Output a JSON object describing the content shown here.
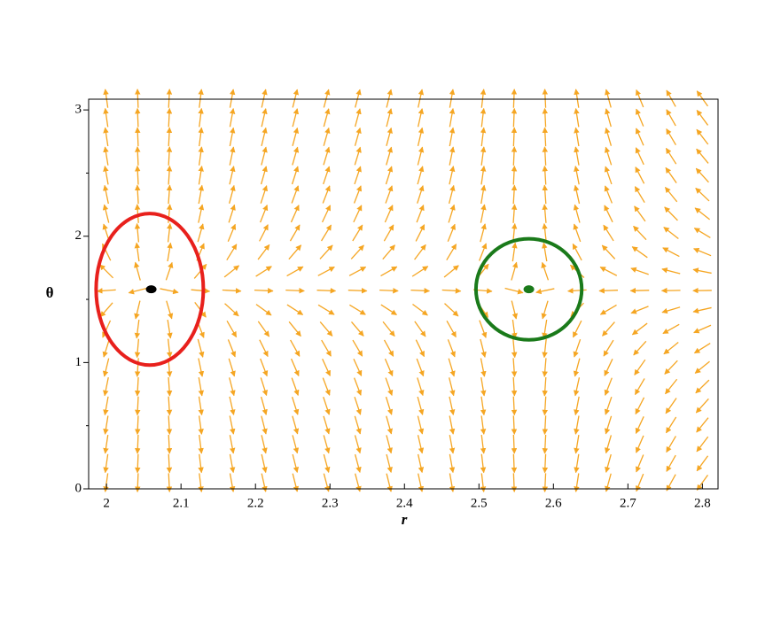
{
  "chart_data": {
    "type": "vector_field",
    "xlabel": "r",
    "ylabel": "θ",
    "xlim": [
      1.976,
      2.821
    ],
    "ylim": [
      0,
      3.085
    ],
    "xticks": [
      2,
      2.1,
      2.2,
      2.3,
      2.4,
      2.5,
      2.6,
      2.7,
      2.8
    ],
    "yticks": [
      0,
      1,
      2,
      3
    ],
    "yminor_ticks": [
      0.5,
      1.5,
      2.5
    ],
    "arrow_color": "#f5a623",
    "arrow_grid": {
      "r": [
        2.0,
        2.042,
        2.084,
        2.126,
        2.168,
        2.211,
        2.253,
        2.295,
        2.337,
        2.379,
        2.421,
        2.463,
        2.505,
        2.547,
        2.589,
        2.632,
        2.674,
        2.716,
        2.758,
        2.8
      ],
      "theta": [
        0.05,
        0.202,
        0.354,
        0.506,
        0.658,
        0.81,
        0.962,
        1.114,
        1.266,
        1.418,
        1.57,
        1.722,
        1.874,
        2.026,
        2.178,
        2.33,
        2.482,
        2.634,
        2.786,
        2.938,
        3.09
      ]
    },
    "critical_points": [
      {
        "r": 2.06,
        "theta": 1.58,
        "color": "#000000"
      },
      {
        "r": 2.567,
        "theta": 1.58,
        "color": "#1a7a1a"
      }
    ],
    "ellipses": [
      {
        "r": 2.058,
        "theta": 1.58,
        "r_radius": 0.072,
        "theta_radius": 0.6,
        "color": "#e8201c"
      },
      {
        "r": 2.567,
        "theta": 1.58,
        "r_radius": 0.071,
        "theta_radius": 0.4,
        "color": "#1a7a1a"
      }
    ]
  }
}
